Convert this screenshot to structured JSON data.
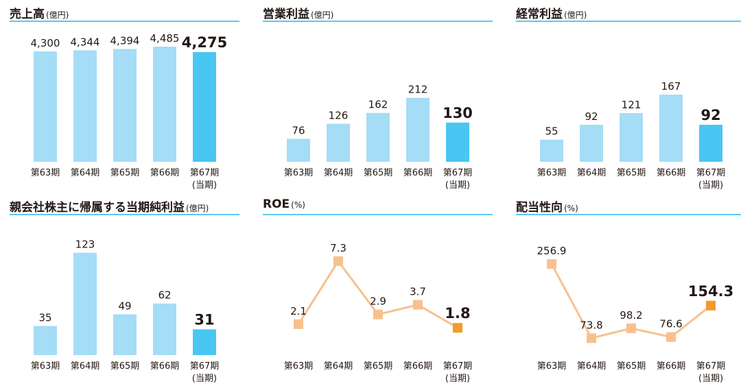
{
  "charts": [
    {
      "id": "sales",
      "title": "売上高",
      "unit": "(億円)",
      "chart_data": {
        "type": "bar",
        "categories": [
          "第63期",
          "第64期",
          "第65期",
          "第66期",
          "第67期"
        ],
        "current_label": "(当期)",
        "values": [
          4300,
          4344,
          4394,
          4485,
          4275
        ],
        "labels": [
          "4,300",
          "4,344",
          "4,394",
          "4,485",
          "4,275"
        ],
        "ylim": [
          0,
          4700
        ]
      }
    },
    {
      "id": "operating-income",
      "title": "営業利益",
      "unit": "(億円)",
      "chart_data": {
        "type": "bar",
        "categories": [
          "第63期",
          "第64期",
          "第65期",
          "第66期",
          "第67期"
        ],
        "current_label": "(当期)",
        "values": [
          76,
          126,
          162,
          212,
          130
        ],
        "labels": [
          "76",
          "126",
          "162",
          "212",
          "130"
        ],
        "ylim": [
          0,
          400
        ]
      }
    },
    {
      "id": "ordinary-income",
      "title": "経常利益",
      "unit": "(億円)",
      "chart_data": {
        "type": "bar",
        "categories": [
          "第63期",
          "第64期",
          "第65期",
          "第66期",
          "第67期"
        ],
        "current_label": "(当期)",
        "values": [
          55,
          92,
          121,
          167,
          92
        ],
        "labels": [
          "55",
          "92",
          "121",
          "167",
          "92"
        ],
        "ylim": [
          0,
          300
        ]
      }
    },
    {
      "id": "net-income",
      "title": "親会社株主に帰属する当期純利益",
      "unit": "(億円)",
      "chart_data": {
        "type": "bar",
        "categories": [
          "第63期",
          "第64期",
          "第65期",
          "第66期",
          "第67期"
        ],
        "current_label": "(当期)",
        "values": [
          35,
          123,
          49,
          62,
          31
        ],
        "labels": [
          "35",
          "123",
          "49",
          "62",
          "31"
        ],
        "ylim": [
          0,
          145
        ]
      }
    },
    {
      "id": "roe",
      "title": "ROE",
      "unit": "(%)",
      "chart_data": {
        "type": "line",
        "categories": [
          "第63期",
          "第64期",
          "第65期",
          "第66期",
          "第67期"
        ],
        "current_label": "(当期)",
        "values": [
          2.1,
          7.3,
          2.9,
          3.7,
          1.8
        ],
        "labels": [
          "2.1",
          "7.3",
          "2.9",
          "3.7",
          "1.8"
        ],
        "ylim": [
          -0.45,
          9.5
        ]
      }
    },
    {
      "id": "payout-ratio",
      "title": "配当性向",
      "unit": "(%)",
      "chart_data": {
        "type": "line",
        "categories": [
          "第63期",
          "第64期",
          "第65期",
          "第66期",
          "第67期"
        ],
        "current_label": "(当期)",
        "values": [
          256.9,
          73.8,
          98.2,
          76.6,
          154.3
        ],
        "labels": [
          "256.9",
          "73.8",
          "98.2",
          "76.6",
          "154.3"
        ],
        "ylim": [
          32,
          330
        ]
      }
    }
  ],
  "colors": {
    "bar": "#a5dcf6",
    "bar_current": "#4ac6f2",
    "line": "#f7c18f",
    "marker": "#f7c18f",
    "marker_current": "#f39a2a",
    "title_rule": "#5bc8ee"
  }
}
